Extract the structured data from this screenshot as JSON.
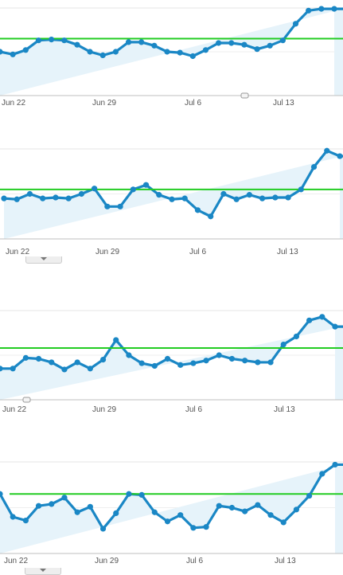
{
  "chart_data": [
    {
      "type": "area",
      "x_tick_labels": [
        "Jun 22",
        "Jun 29",
        "Jul 6",
        "Jul 13"
      ],
      "ylim": [
        0,
        100
      ],
      "reference_line": 65,
      "values": [
        50,
        47,
        52,
        63,
        64,
        63,
        58,
        50,
        46,
        50,
        61,
        61,
        57,
        50,
        49,
        45,
        52,
        60,
        60,
        58,
        53,
        57,
        63,
        82,
        97,
        99,
        99
      ],
      "series_color": "#1a87c5",
      "reference_color": "#22cc22",
      "fill_color": "#e6f3fa"
    },
    {
      "type": "area",
      "x_tick_labels": [
        "Jun 22",
        "Jun 29",
        "Jul 6",
        "Jul 13"
      ],
      "ylim": [
        0,
        100
      ],
      "reference_line": 55,
      "values": [
        45,
        44,
        50,
        45,
        46,
        45,
        50,
        56,
        36,
        36,
        55,
        60,
        49,
        44,
        45,
        32,
        25,
        50,
        44,
        49,
        45,
        46,
        46,
        55,
        80,
        98,
        92
      ],
      "series_color": "#1a87c5",
      "reference_color": "#22cc22",
      "fill_color": "#e6f3fa"
    },
    {
      "type": "area",
      "x_tick_labels": [
        "Jun 22",
        "Jun 29",
        "Jul 6",
        "Jul 13"
      ],
      "ylim": [
        0,
        100
      ],
      "reference_line": 58,
      "values": [
        35,
        35,
        47,
        46,
        42,
        34,
        42,
        35,
        45,
        67,
        50,
        41,
        38,
        46,
        39,
        41,
        44,
        50,
        46,
        44,
        42,
        42,
        62,
        71,
        89,
        93,
        82
      ],
      "series_color": "#1a87c5",
      "reference_color": "#22cc22",
      "fill_color": "#e6f3fa"
    },
    {
      "type": "area",
      "x_tick_labels": [
        "Jun 22",
        "Jun 29",
        "Jul 6",
        "Jul 13"
      ],
      "ylim": [
        0,
        100
      ],
      "reference_line": 65,
      "values": [
        65,
        40,
        36,
        52,
        54,
        61,
        45,
        51,
        27,
        44,
        65,
        64,
        45,
        35,
        42,
        28,
        29,
        52,
        50,
        46,
        53,
        42,
        34,
        48,
        63,
        87,
        97
      ],
      "series_color": "#1a87c5",
      "reference_color": "#22cc22",
      "fill_color": "#e6f3fa"
    }
  ]
}
